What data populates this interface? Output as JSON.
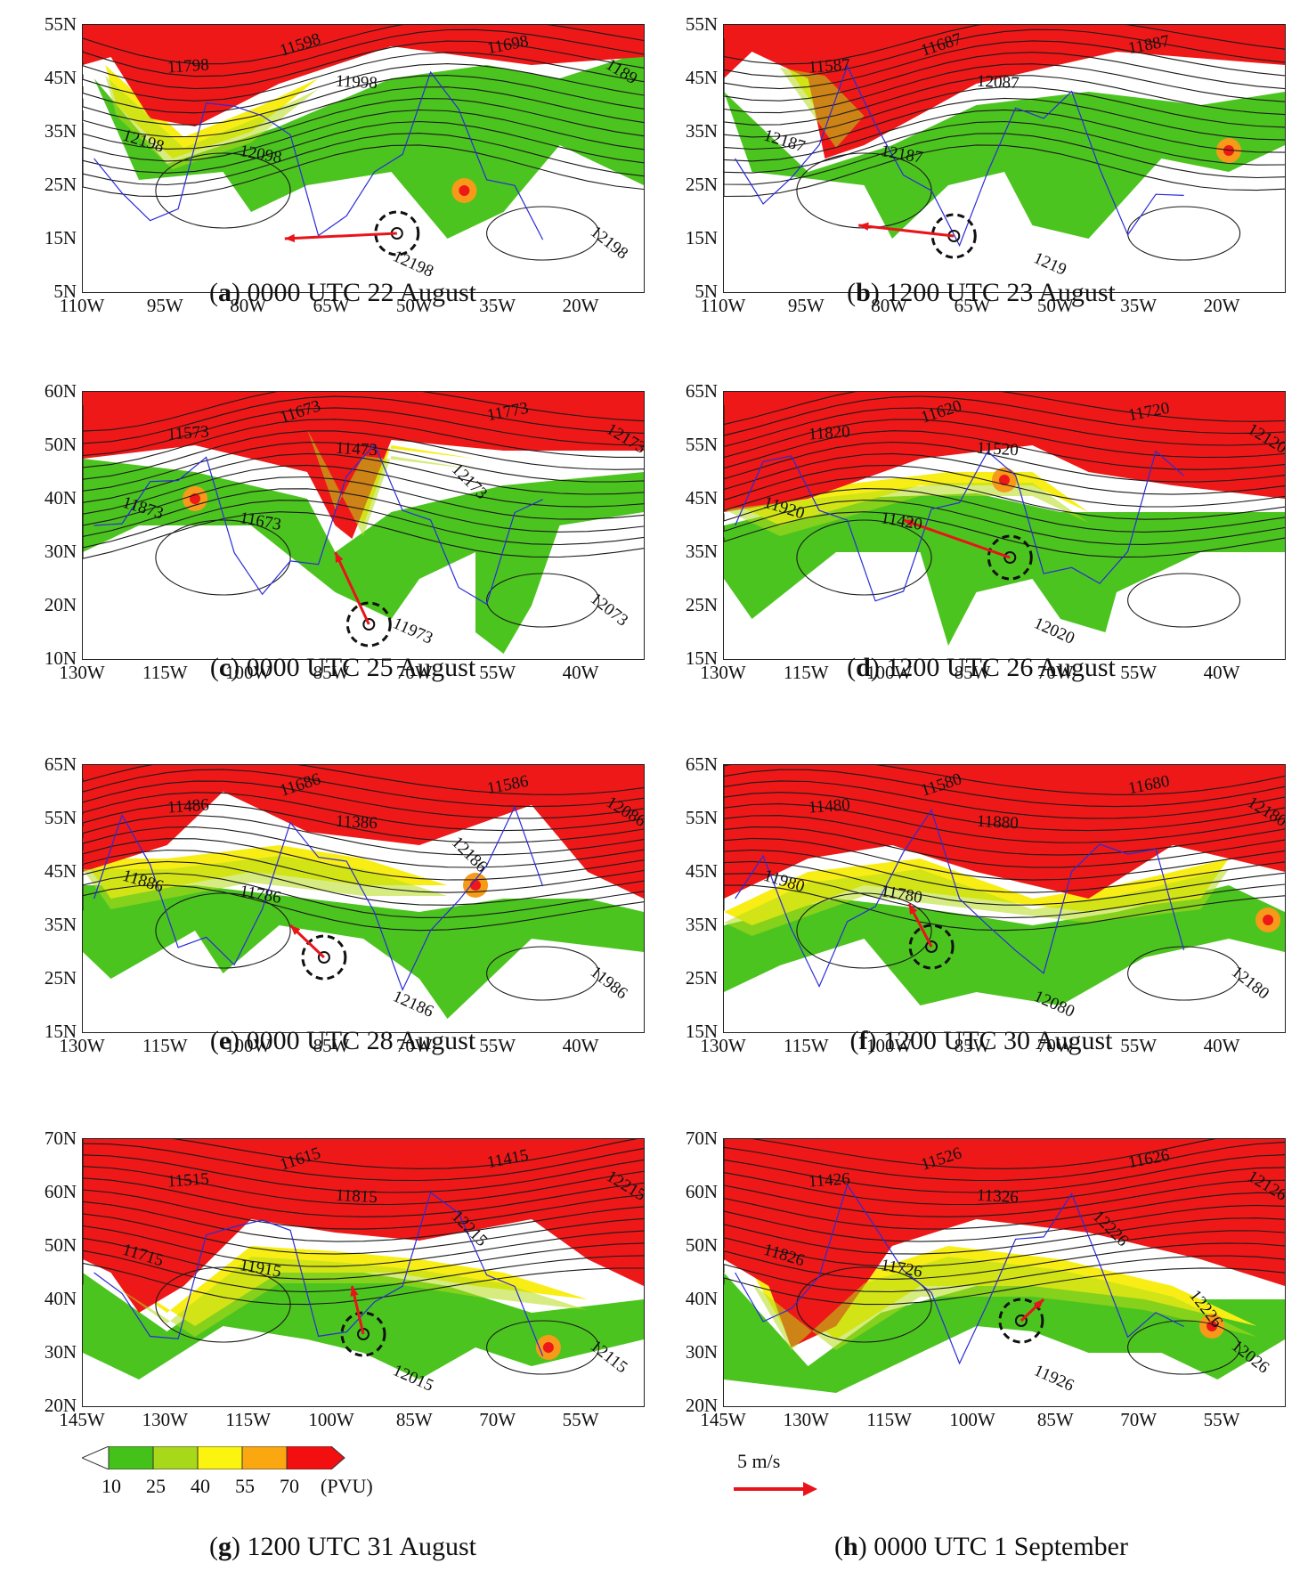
{
  "panels": [
    {
      "letter": "a",
      "caption": "0000 UTC 22 August",
      "lat": [
        "55N",
        "45N",
        "35N",
        "25N",
        "15N",
        "5N"
      ],
      "lon": [
        "110W",
        "95W",
        "80W",
        "65W",
        "50W",
        "35W",
        "20W"
      ],
      "contours": [
        "11598",
        "11698",
        "11798",
        "11998",
        "12098",
        "12198",
        "12198",
        "1189",
        "12198"
      ]
    },
    {
      "letter": "b",
      "caption": "1200 UTC 23 August",
      "lat": [
        "55N",
        "45N",
        "35N",
        "25N",
        "15N",
        "5N"
      ],
      "lon": [
        "110W",
        "95W",
        "80W",
        "65W",
        "50W",
        "35W",
        "20W"
      ],
      "contours": [
        "11687",
        "11887",
        "11587",
        "12087",
        "12187",
        "12187",
        "1219"
      ]
    },
    {
      "letter": "c",
      "caption": "0000 UTC 25 August",
      "lat": [
        "60N",
        "50N",
        "40N",
        "30N",
        "20N",
        "10N"
      ],
      "lon": [
        "130W",
        "115W",
        "100W",
        "85W",
        "70W",
        "55W",
        "40W"
      ],
      "contours": [
        "11673",
        "11773",
        "11573",
        "11473",
        "11673",
        "11873",
        "11973",
        "12173",
        "12073",
        "12173"
      ]
    },
    {
      "letter": "d",
      "caption": "1200 UTC 26 August",
      "lat": [
        "65N",
        "55N",
        "45N",
        "35N",
        "25N",
        "15N"
      ],
      "lon": [
        "130W",
        "115W",
        "100W",
        "85W",
        "70W",
        "55W",
        "40W"
      ],
      "contours": [
        "11620",
        "11720",
        "11820",
        "11520",
        "11420",
        "11920",
        "12020",
        "12120"
      ]
    },
    {
      "letter": "e",
      "caption": "0000 UTC 28 August",
      "lat": [
        "65N",
        "55N",
        "45N",
        "35N",
        "25N",
        "15N"
      ],
      "lon": [
        "130W",
        "115W",
        "100W",
        "85W",
        "70W",
        "55W",
        "40W"
      ],
      "contours": [
        "11686",
        "11586",
        "11486",
        "11386",
        "11786",
        "11886",
        "12186",
        "12086",
        "11986",
        "12186"
      ]
    },
    {
      "letter": "f",
      "caption": "1200 UTC 30 August",
      "lat": [
        "65N",
        "55N",
        "45N",
        "35N",
        "25N",
        "15N"
      ],
      "lon": [
        "130W",
        "115W",
        "100W",
        "85W",
        "70W",
        "55W",
        "40W"
      ],
      "contours": [
        "11580",
        "11680",
        "11480",
        "11880",
        "11780",
        "11980",
        "12080",
        "12180",
        "12180"
      ]
    },
    {
      "letter": "g",
      "caption": "1200 UTC 31 August",
      "lat": [
        "70N",
        "60N",
        "50N",
        "40N",
        "30N",
        "20N"
      ],
      "lon": [
        "145W",
        "130W",
        "115W",
        "100W",
        "85W",
        "70W",
        "55W"
      ],
      "contours": [
        "11615",
        "11415",
        "11515",
        "11815",
        "11915",
        "11715",
        "12015",
        "12215",
        "12115",
        "12215"
      ]
    },
    {
      "letter": "h",
      "caption": "0000 UTC 1 September",
      "lat": [
        "70N",
        "60N",
        "50N",
        "40N",
        "30N",
        "20N"
      ],
      "lon": [
        "145W",
        "130W",
        "115W",
        "100W",
        "85W",
        "70W",
        "55W"
      ],
      "contours": [
        "11526",
        "11626",
        "11426",
        "11326",
        "11726",
        "11826",
        "11926",
        "12126",
        "12026",
        "12226",
        "12226"
      ]
    }
  ],
  "legend": {
    "ticks": [
      "10",
      "25",
      "40",
      "55",
      "70"
    ],
    "unit": "(PVU)",
    "colors": [
      "#ffffff",
      "#44c21a",
      "#a7d81a",
      "#fbf40f",
      "#fba810",
      "#f30f0f"
    ]
  },
  "wind_reference": {
    "label": "5 m/s",
    "color": "#e8141a"
  },
  "colors": {
    "pv_green": "#4cc41f",
    "pv_lime": "#b5dd18",
    "pv_yellow": "#f8ee16",
    "pv_orange": "#f79a1a",
    "pv_red": "#ee1818",
    "coast": "#2b2bd8",
    "contour": "#1a1a1a",
    "arrow": "#e8141a"
  }
}
